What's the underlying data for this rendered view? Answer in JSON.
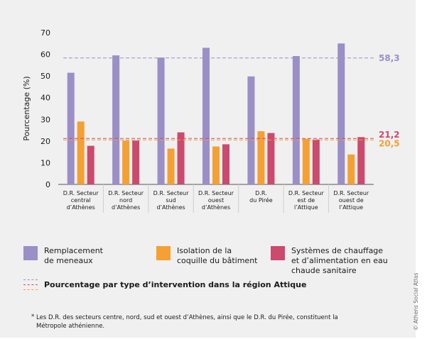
{
  "chart_data": {
    "type": "bar",
    "ylabel": "Pourcentage (%)",
    "ylim": [
      0,
      70
    ],
    "yticks": [
      0,
      10,
      20,
      30,
      40,
      50,
      60,
      70
    ],
    "categories": [
      [
        "D.R. Secteur",
        "central",
        "d’Athènes"
      ],
      [
        "D.R. Secteur",
        "nord",
        "d’Athènes"
      ],
      [
        "D.R. Secteur",
        "sud",
        "d’Athènes"
      ],
      [
        "D.R. Secteur",
        "ouest",
        "d’Athènes"
      ],
      [
        "D.R.",
        "du Pirée"
      ],
      [
        "D.R. Secteur",
        "est de",
        "l’Attique"
      ],
      [
        "D.R. Secteur",
        "ouest de",
        "l’Attique"
      ]
    ],
    "series": [
      {
        "name": "Remplacement de meneaux",
        "color": "#9b8fc8",
        "values": [
          51.5,
          59.5,
          58.5,
          63,
          49.8,
          59.2,
          65
        ]
      },
      {
        "name": "Isolation de la coquille du bâtiment",
        "color": "#f5a032",
        "values": [
          29,
          20.2,
          16.5,
          17.5,
          24.5,
          21,
          13.8
        ]
      },
      {
        "name": "Systèmes de chauffage et d’alimentation en eau chaude sanitaire",
        "color": "#cb4a6e",
        "values": [
          17.8,
          20.2,
          24,
          18.5,
          23.7,
          20.7,
          21.8
        ]
      }
    ],
    "reference_lines": [
      {
        "value": 58.3,
        "label": "58,3",
        "color": "#9b8fc8"
      },
      {
        "value": 21.2,
        "label": "21,2",
        "color": "#cb4a6e"
      },
      {
        "value": 20.5,
        "label": "20,5",
        "color": "#f5a032"
      }
    ],
    "grid": false,
    "legend_position": "bottom"
  },
  "legend": {
    "items": [
      {
        "lines": [
          "Remplacement",
          "de meneaux"
        ],
        "color": "#9b8fc8"
      },
      {
        "lines": [
          "Isolation de la",
          "coquille du bâtiment"
        ],
        "color": "#f5a032"
      },
      {
        "lines": [
          "Systèmes de chauffage",
          "et d’alimentation en eau",
          "chaude sanitaire"
        ],
        "color": "#cb4a6e"
      }
    ],
    "reference_label": "Pourcentage par type d’intervention dans la région Attique"
  },
  "footnote": {
    "star": "*",
    "text": "Les D.R. des secteurs centre, nord, sud et ouest d’Athènes, ainsi que le D.R. du Pirée, constituent la Métropole athénienne."
  },
  "credit": "© Athens Social Atlas"
}
